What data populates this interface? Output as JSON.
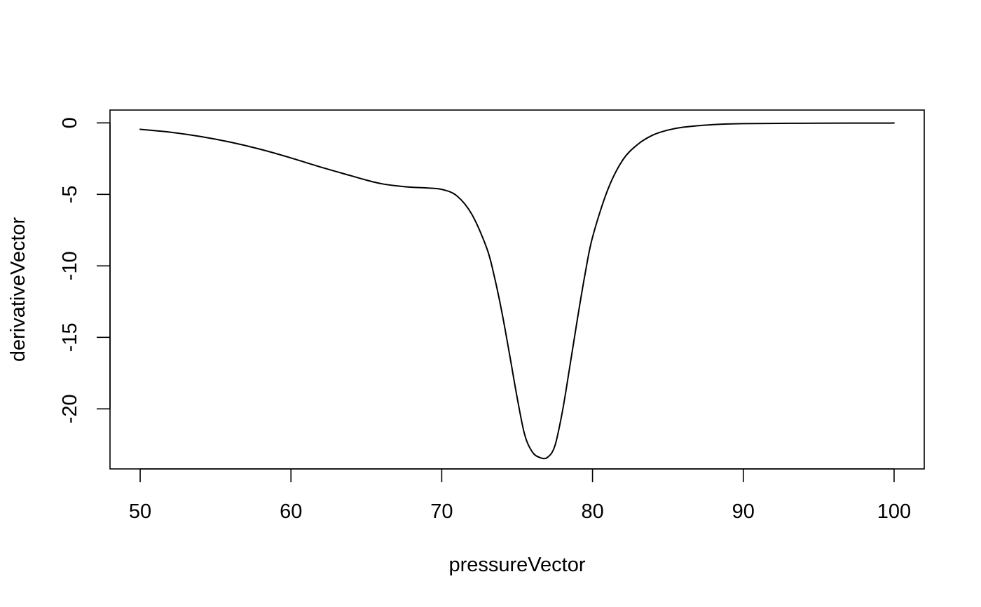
{
  "chart_data": {
    "type": "line",
    "title": "",
    "xlabel": "pressureVector",
    "ylabel": "derivativeVector",
    "xlim": [
      48,
      102
    ],
    "ylim": [
      -24.2,
      0.9
    ],
    "x_ticks": [
      50,
      60,
      70,
      80,
      90,
      100
    ],
    "y_ticks": [
      0,
      -5,
      -10,
      -15,
      -20
    ],
    "x_tick_labels": [
      "50",
      "60",
      "70",
      "80",
      "90",
      "100"
    ],
    "y_tick_labels": [
      "0",
      "-5",
      "-10",
      "-15",
      "-20"
    ],
    "grid": false,
    "legend": "none",
    "series": [
      {
        "color": "#000000",
        "x": [
          50,
          52,
          54,
          56,
          58,
          60,
          62,
          64,
          65,
          66,
          67,
          68,
          69,
          70,
          71,
          72,
          73,
          73.5,
          74,
          74.5,
          75,
          75.5,
          76,
          76.5,
          77,
          77.5,
          78,
          78.5,
          79,
          79.5,
          80,
          81,
          82,
          83,
          84,
          85,
          86,
          88,
          90,
          95,
          100
        ],
        "y": [
          -0.45,
          -0.65,
          -0.95,
          -1.35,
          -1.85,
          -2.45,
          -3.1,
          -3.7,
          -4.0,
          -4.25,
          -4.4,
          -4.5,
          -4.55,
          -4.65,
          -5.1,
          -6.4,
          -8.8,
          -10.8,
          -13.3,
          -16.2,
          -19.2,
          -21.8,
          -23.0,
          -23.4,
          -23.4,
          -22.6,
          -20.2,
          -17.0,
          -13.7,
          -10.6,
          -8.0,
          -4.7,
          -2.6,
          -1.5,
          -0.85,
          -0.5,
          -0.3,
          -0.12,
          -0.05,
          -0.02,
          -0.01
        ]
      }
    ]
  }
}
